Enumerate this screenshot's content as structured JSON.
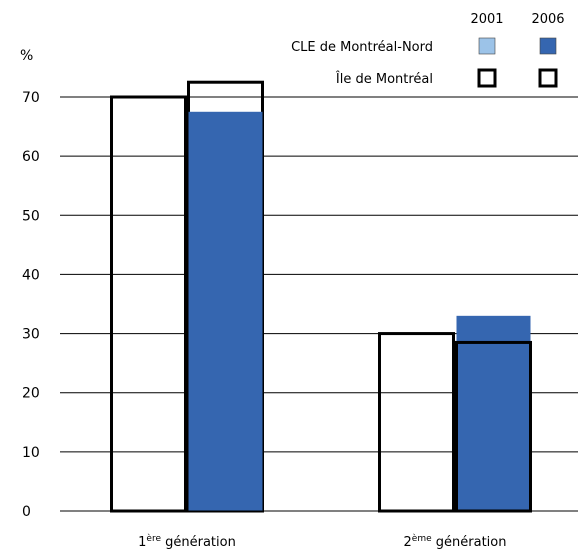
{
  "chart_data": {
    "type": "bar",
    "ylabel": "%",
    "ylim": [
      0,
      70
    ],
    "yticks": [
      0,
      10,
      20,
      30,
      40,
      50,
      60,
      70
    ],
    "categories": [
      {
        "base": "1",
        "sup": "ère",
        "rest": " génération"
      },
      {
        "base": "2",
        "sup": "ème",
        "rest": " génération"
      }
    ],
    "legend": {
      "years": [
        "2001",
        "2006"
      ],
      "series": [
        {
          "name": "CLE de Montréal-Nord",
          "colors": {
            "2001": "#9cc3e8",
            "2006": "#3566b0"
          }
        },
        {
          "name": "Île de Montréal",
          "colors": {
            "2001": "#ffffff",
            "2006": "#ffffff"
          }
        }
      ]
    },
    "bars": [
      {
        "category": 0,
        "series": "Île de Montréal",
        "year": "2001",
        "value": 70
      },
      {
        "category": 0,
        "series": "Île de Montréal",
        "year": "2006",
        "value": 72.5
      },
      {
        "category": 0,
        "series": "CLE de Montréal-Nord",
        "year": "2006",
        "value": 67.5
      },
      {
        "category": 1,
        "series": "Île de Montréal",
        "year": "2001",
        "value": 30
      },
      {
        "category": 1,
        "series": "CLE de Montréal-Nord",
        "year": "2006",
        "value": 33
      },
      {
        "category": 1,
        "series": "Île de Montréal",
        "year": "2006",
        "value": 28.5
      }
    ],
    "colors": {
      "fill_2006": "#3566b0",
      "fill_2001": "#9cc3e8",
      "outline": "#000000"
    }
  }
}
